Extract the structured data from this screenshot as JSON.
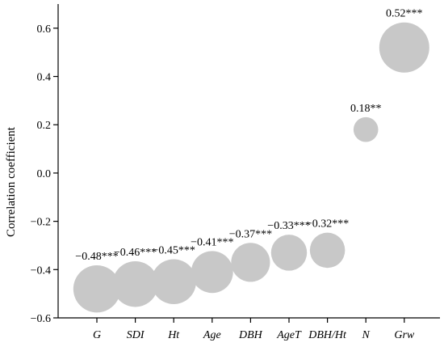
{
  "chart_data": {
    "type": "scatter",
    "ylabel": "Correlation coefficient",
    "ylim": [
      -0.6,
      0.7
    ],
    "yticks": [
      "0.6",
      "0.4",
      "0.2",
      "0.0",
      "−0.2",
      "−0.4",
      "−0.6"
    ],
    "ytick_values": [
      0.6,
      0.4,
      0.2,
      0.0,
      -0.2,
      -0.4,
      -0.6
    ],
    "categories": [
      "G",
      "SDI",
      "Ht",
      "Age",
      "DBH",
      "AgeT",
      "DBH/Ht",
      "N",
      "Grw"
    ],
    "values": [
      -0.48,
      -0.46,
      -0.45,
      -0.41,
      -0.37,
      -0.33,
      -0.32,
      0.18,
      0.52
    ],
    "labels": [
      "−0.48***",
      "−0.46***",
      "−0.45***",
      "−0.41***",
      "−0.37***",
      "−0.33***",
      "−0.32***",
      "0.18**",
      "0.52***"
    ],
    "bubble_color": "#c8c8c8",
    "grid": false,
    "legend": "none"
  }
}
